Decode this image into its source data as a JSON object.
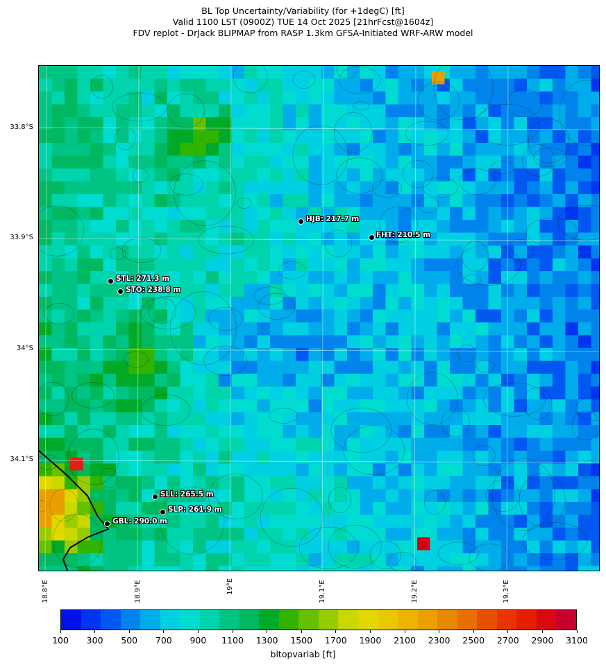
{
  "header": {
    "line1": "BL Top Uncertainty/Variability (for +1degC) [ft]",
    "line2": "Valid 1100 LST (0900Z) TUE 14 Oct 2025 [21hrFcst@1604z]",
    "line3": "FDV replot - DrJack BLIPMAP from RASP 1.3km GFSA-Initiated WRF-ARW model"
  },
  "map": {
    "lat_labels": [
      "33.8°S",
      "33.9°S",
      "34°S",
      "34.1°S"
    ],
    "lon_labels": [
      "18.8°E",
      "18.9°E",
      "19°E",
      "19.1°E",
      "19.2°E",
      "19.3°E"
    ],
    "stations": [
      {
        "label": "HJB: 217.7 m"
      },
      {
        "label": "FHT: 210.5 m"
      },
      {
        "label": "STL: 271.3 m"
      },
      {
        "label": "STO: 238.8 m"
      },
      {
        "label": "SLL: 265.5 m"
      },
      {
        "label": "SLP: 261.9 m"
      },
      {
        "label": "GBL: 290.0 m"
      }
    ]
  },
  "colorbar": {
    "xlabel": "bltopvariab [ft]",
    "tick_labels": [
      "100",
      "300",
      "500",
      "700",
      "900",
      "1100",
      "1300",
      "1500",
      "1700",
      "1900",
      "2100",
      "2300",
      "2500",
      "2700",
      "2900",
      "3100"
    ],
    "colors": [
      "#0010e8",
      "#0034ee",
      "#0058f0",
      "#0084ec",
      "#00acea",
      "#00d0e2",
      "#00dcd0",
      "#00d4ac",
      "#00c484",
      "#00b860",
      "#00aa28",
      "#30b400",
      "#64c000",
      "#98cc00",
      "#c8d800",
      "#e0d800",
      "#e8c800",
      "#ecb400",
      "#eca000",
      "#e88800",
      "#e87000",
      "#e85000",
      "#e83400",
      "#e41c00",
      "#dc0810",
      "#c80030"
    ]
  }
}
